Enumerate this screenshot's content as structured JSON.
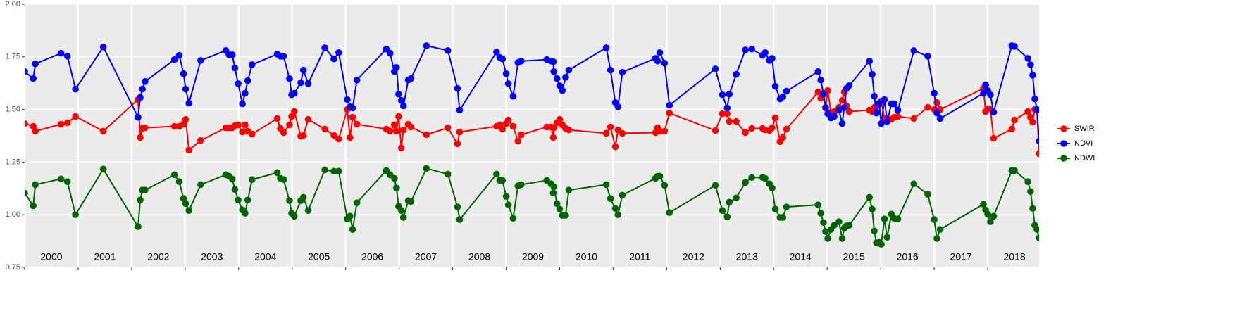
{
  "chart_data": {
    "type": "line",
    "x": [
      2000.0,
      2000.16,
      2000.2,
      2000.68,
      2000.8,
      2000.95,
      2001.47,
      2002.12,
      2002.16,
      2002.2,
      2002.25,
      2002.8,
      2002.89,
      2002.97,
      2003.01,
      2003.07,
      2003.29,
      2003.76,
      2003.82,
      2003.88,
      2003.93,
      2003.99,
      2004.07,
      2004.12,
      2004.17,
      2004.25,
      2004.72,
      2004.78,
      2004.84,
      2004.95,
      2004.99,
      2005.04,
      2005.16,
      2005.21,
      2005.3,
      2005.61,
      2005.78,
      2005.87,
      2006.03,
      2006.08,
      2006.13,
      2006.21,
      2006.76,
      2006.83,
      2006.91,
      2006.95,
      2006.99,
      2007.04,
      2007.08,
      2007.17,
      2007.22,
      2007.51,
      2007.91,
      2008.09,
      2008.13,
      2008.82,
      2008.88,
      2008.93,
      2009.0,
      2009.04,
      2009.13,
      2009.22,
      2009.28,
      2009.76,
      2009.84,
      2009.88,
      2009.89,
      2009.95,
      2010.0,
      2010.05,
      2010.11,
      2010.17,
      2010.87,
      2010.95,
      2011.04,
      2011.09,
      2011.17,
      2011.79,
      2011.83,
      2011.87,
      2011.96,
      2012.05,
      2012.91,
      2013.04,
      2013.13,
      2013.17,
      2013.3,
      2013.47,
      2013.59,
      2013.79,
      2013.84,
      2013.92,
      2013.97,
      2014.03,
      2014.12,
      2014.17,
      2014.24,
      2014.83,
      2014.88,
      2014.93,
      2014.97,
      2015.01,
      2015.07,
      2015.13,
      2015.22,
      2015.28,
      2015.32,
      2015.36,
      2015.41,
      2015.79,
      2015.84,
      2015.88,
      2015.92,
      2015.97,
      2016.01,
      2016.07,
      2016.12,
      2016.2,
      2016.25,
      2016.32,
      2016.62,
      2016.88,
      2017.0,
      2017.05,
      2017.11,
      2017.92,
      2017.96,
      2018.0,
      2018.05,
      2018.11,
      2018.45,
      2018.5,
      2018.75,
      2018.8,
      2018.84,
      2018.88,
      2018.92,
      2018.96
    ],
    "series": [
      {
        "name": "SWIR",
        "color": "#ff0000",
        "values": [
          1.433,
          1.42,
          1.397,
          1.43,
          1.437,
          1.467,
          1.397,
          1.547,
          1.367,
          1.41,
          1.413,
          1.42,
          1.42,
          1.43,
          1.453,
          1.307,
          1.353,
          1.413,
          1.413,
          1.413,
          1.423,
          1.427,
          1.393,
          1.427,
          1.397,
          1.383,
          1.457,
          1.41,
          1.39,
          1.427,
          1.467,
          1.49,
          1.373,
          1.377,
          1.453,
          1.407,
          1.377,
          1.36,
          1.5,
          1.367,
          1.463,
          1.43,
          1.407,
          1.397,
          1.427,
          1.397,
          1.467,
          1.317,
          1.403,
          1.43,
          1.417,
          1.38,
          1.413,
          1.337,
          1.393,
          1.42,
          1.427,
          1.407,
          1.433,
          1.45,
          1.42,
          1.35,
          1.38,
          1.417,
          1.417,
          1.367,
          1.413,
          1.437,
          1.453,
          1.427,
          1.41,
          1.403,
          1.387,
          1.417,
          1.323,
          1.403,
          1.387,
          1.39,
          1.413,
          1.397,
          1.397,
          1.483,
          1.4,
          1.48,
          1.48,
          1.443,
          1.443,
          1.39,
          1.41,
          1.41,
          1.403,
          1.4,
          1.413,
          1.46,
          1.347,
          1.367,
          1.407,
          1.583,
          1.553,
          1.577,
          1.507,
          1.59,
          1.487,
          1.49,
          1.51,
          1.543,
          1.583,
          1.517,
          1.49,
          1.497,
          1.49,
          1.51,
          1.487,
          1.523,
          1.54,
          1.457,
          1.457,
          1.453,
          1.463,
          1.467,
          1.457,
          1.51,
          1.5,
          1.533,
          1.5,
          1.6,
          1.49,
          1.503,
          1.503,
          1.363,
          1.407,
          1.45,
          1.49,
          1.463,
          1.44,
          1.5,
          1.497,
          1.29
        ]
      },
      {
        "name": "NDVI",
        "color": "#0000ff",
        "values": [
          1.68,
          1.647,
          1.717,
          1.767,
          1.753,
          1.597,
          1.797,
          1.463,
          1.557,
          1.597,
          1.633,
          1.737,
          1.757,
          1.67,
          1.597,
          1.53,
          1.733,
          1.78,
          1.76,
          1.76,
          1.697,
          1.623,
          1.527,
          1.577,
          1.637,
          1.713,
          1.763,
          1.753,
          1.753,
          1.647,
          1.57,
          1.577,
          1.627,
          1.687,
          1.623,
          1.793,
          1.74,
          1.77,
          1.547,
          1.513,
          1.507,
          1.64,
          1.787,
          1.767,
          1.68,
          1.7,
          1.573,
          1.543,
          1.517,
          1.64,
          1.647,
          1.803,
          1.78,
          1.6,
          1.497,
          1.773,
          1.747,
          1.74,
          1.67,
          1.623,
          1.563,
          1.723,
          1.73,
          1.737,
          1.73,
          1.727,
          1.68,
          1.647,
          1.613,
          1.59,
          1.653,
          1.687,
          1.793,
          1.687,
          1.533,
          1.513,
          1.677,
          1.743,
          1.73,
          1.77,
          1.72,
          1.52,
          1.693,
          1.57,
          1.507,
          1.573,
          1.667,
          1.783,
          1.787,
          1.757,
          1.77,
          1.733,
          1.743,
          1.61,
          1.55,
          1.56,
          1.587,
          1.68,
          1.64,
          1.573,
          1.51,
          1.48,
          1.46,
          1.467,
          1.497,
          1.433,
          1.51,
          1.6,
          1.613,
          1.73,
          1.667,
          1.563,
          1.483,
          1.53,
          1.433,
          1.547,
          1.443,
          1.527,
          1.527,
          1.497,
          1.78,
          1.753,
          1.577,
          1.483,
          1.457,
          1.577,
          1.617,
          1.59,
          1.57,
          1.487,
          1.803,
          1.8,
          1.743,
          1.713,
          1.663,
          1.55,
          1.5,
          1.35
        ]
      },
      {
        "name": "NDWI",
        "color": "#006400",
        "values": [
          1.103,
          1.043,
          1.143,
          1.17,
          1.157,
          1.0,
          1.217,
          0.943,
          1.07,
          1.117,
          1.117,
          1.19,
          1.157,
          1.077,
          1.053,
          1.02,
          1.143,
          1.19,
          1.183,
          1.17,
          1.12,
          1.07,
          1.023,
          1.007,
          1.07,
          1.167,
          1.2,
          1.173,
          1.167,
          1.067,
          1.007,
          0.993,
          1.067,
          1.083,
          1.02,
          1.213,
          1.207,
          1.207,
          0.98,
          0.993,
          0.93,
          1.057,
          1.21,
          1.19,
          1.173,
          1.127,
          1.04,
          1.02,
          0.987,
          1.067,
          1.063,
          1.22,
          1.193,
          1.037,
          0.977,
          1.193,
          1.163,
          1.163,
          1.087,
          1.047,
          0.983,
          1.137,
          1.143,
          1.163,
          1.147,
          1.103,
          1.133,
          1.053,
          1.027,
          0.997,
          0.997,
          1.117,
          1.143,
          1.077,
          1.03,
          1.0,
          1.093,
          1.173,
          1.183,
          1.183,
          1.14,
          1.01,
          1.14,
          1.02,
          0.99,
          1.06,
          1.08,
          1.153,
          1.177,
          1.177,
          1.173,
          1.147,
          1.127,
          1.027,
          0.987,
          0.987,
          1.037,
          1.047,
          1.007,
          0.963,
          0.92,
          0.887,
          0.93,
          0.95,
          0.967,
          0.887,
          0.937,
          0.947,
          0.95,
          1.083,
          1.027,
          0.923,
          0.867,
          0.87,
          0.86,
          0.98,
          0.893,
          1.003,
          0.983,
          0.98,
          1.147,
          1.097,
          0.977,
          0.887,
          0.93,
          1.05,
          1.023,
          1.003,
          0.967,
          0.993,
          1.21,
          1.21,
          1.157,
          1.11,
          1.03,
          0.95,
          0.93,
          0.89
        ]
      }
    ],
    "year_labels": [
      "2000",
      "2001",
      "2002",
      "2003",
      "2004",
      "2005",
      "2006",
      "2007",
      "2008",
      "2009",
      "2010",
      "2011",
      "2012",
      "2013",
      "2014",
      "2015",
      "2016",
      "2017",
      "2018"
    ],
    "xlim": [
      2000,
      2018.96
    ],
    "xticks": [
      2000,
      2001,
      2002,
      2003,
      2004,
      2005,
      2006,
      2007,
      2008,
      2009,
      2010,
      2011,
      2012,
      2013,
      2014,
      2015,
      2016,
      2017,
      2018
    ],
    "ylim": [
      0.75,
      2.0
    ],
    "yticks": [
      {
        "value": 0.75,
        "label": "0.75"
      },
      {
        "value": 1.0,
        "label": "1.00"
      },
      {
        "value": 1.25,
        "label": "1.25"
      },
      {
        "value": 1.5,
        "label": "1.50"
      },
      {
        "value": 1.75,
        "label": "1.75"
      },
      {
        "value": 2.0,
        "label": "2.00"
      }
    ],
    "grid": true,
    "legend": "right"
  }
}
